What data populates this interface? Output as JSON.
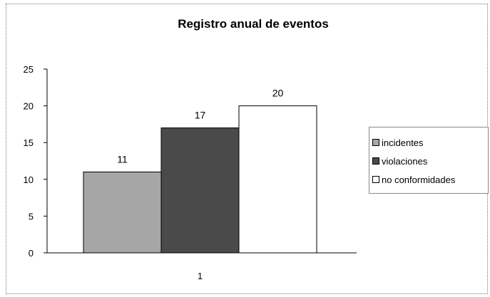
{
  "chart_data": {
    "type": "bar",
    "title": "Registro anual de eventos",
    "categories": [
      "1"
    ],
    "series": [
      {
        "name": "incidentes",
        "values": [
          11
        ],
        "color": "#a6a6a6"
      },
      {
        "name": "violaciones",
        "values": [
          17
        ],
        "color": "#4a4a4a"
      },
      {
        "name": "no conformidades",
        "values": [
          20
        ],
        "color": "#ffffff"
      }
    ],
    "ylim": [
      0,
      25
    ],
    "yticks": [
      "0",
      "5",
      "10",
      "15",
      "20",
      "25"
    ],
    "data_labels": [
      "11",
      "17",
      "20"
    ],
    "legend_position": "right",
    "grid": false
  }
}
